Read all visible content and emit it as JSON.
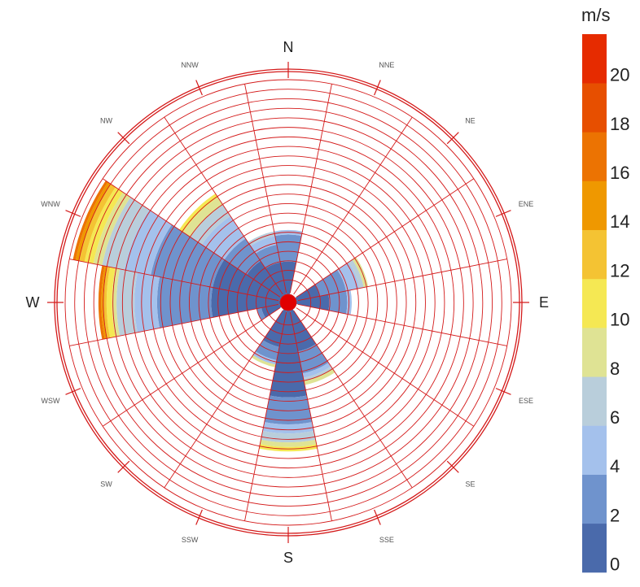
{
  "chart_data": {
    "type": "wind_rose",
    "directions": [
      "N",
      "NNE",
      "NE",
      "ENE",
      "E",
      "ESE",
      "SE",
      "SSE",
      "S",
      "SSW",
      "SW",
      "WSW",
      "W",
      "WNW",
      "NW",
      "NNW"
    ],
    "cardinal_labels": [
      "N",
      "E",
      "S",
      "W"
    ],
    "legend": {
      "unit": "m/s",
      "ticks": [
        "0",
        "2",
        "4",
        "6",
        "8",
        "10",
        "12",
        "14",
        "16",
        "18",
        "20"
      ],
      "bins": [
        {
          "range": "0-2",
          "color": "#4a6aab"
        },
        {
          "range": "2-4",
          "color": "#6f93cd"
        },
        {
          "range": "4-6",
          "color": "#a4c1ec"
        },
        {
          "range": "6-8",
          "color": "#b9cedb"
        },
        {
          "range": "8-10",
          "color": "#dfe394"
        },
        {
          "range": "10-12",
          "color": "#f5e853"
        },
        {
          "range": "12-14",
          "color": "#f4c333"
        },
        {
          "range": "14-16",
          "color": "#ef9800"
        },
        {
          "range": "16-18",
          "color": "#ec7302"
        },
        {
          "range": "18-20",
          "color": "#e74f00"
        },
        {
          "range": "20-22",
          "color": "#e62b00"
        }
      ]
    },
    "radial_max": 26,
    "stacks": [
      {
        "direction": "N",
        "values": [
          4,
          3,
          0.5,
          0,
          0,
          0,
          0,
          0,
          0,
          0,
          0
        ]
      },
      {
        "direction": "NNE",
        "values": [
          0,
          0,
          0,
          0,
          0,
          0,
          0,
          0,
          0,
          0,
          0
        ]
      },
      {
        "direction": "NE",
        "values": [
          0,
          0,
          0,
          0,
          0,
          0,
          0,
          0,
          0,
          0,
          0
        ]
      },
      {
        "direction": "ENE",
        "values": [
          3,
          3,
          1.5,
          0.5,
          0.5,
          0,
          0,
          0,
          0,
          0,
          0
        ]
      },
      {
        "direction": "E",
        "values": [
          4,
          2,
          0.5,
          0,
          0,
          0,
          0,
          0,
          0,
          0,
          0
        ]
      },
      {
        "direction": "ESE",
        "values": [
          0,
          0,
          0,
          0,
          0,
          0,
          0,
          0,
          0,
          0,
          0
        ]
      },
      {
        "direction": "SE",
        "values": [
          0,
          0,
          0,
          0,
          0,
          0,
          0,
          0,
          0,
          0,
          0
        ]
      },
      {
        "direction": "SSE",
        "values": [
          5,
          2.5,
          0.5,
          0.3,
          0.5,
          0,
          0,
          0,
          0,
          0,
          0
        ]
      },
      {
        "direction": "S",
        "values": [
          10,
          3,
          1,
          1,
          0.5,
          0.5,
          0,
          0,
          0,
          0,
          0
        ]
      },
      {
        "direction": "SSW",
        "values": [
          4.5,
          1.5,
          0.5,
          0,
          0.3,
          0,
          0,
          0,
          0,
          0,
          0
        ]
      },
      {
        "direction": "SW",
        "values": [
          0,
          0,
          0,
          0,
          0,
          0,
          0,
          0,
          0,
          0,
          0
        ]
      },
      {
        "direction": "WSW",
        "values": [
          2.5,
          0.5,
          0,
          0,
          0,
          0,
          0,
          0,
          0,
          0,
          0
        ]
      },
      {
        "direction": "W",
        "values": [
          8,
          6,
          2.5,
          2,
          0.5,
          0.6,
          0.4,
          0.2,
          0.3,
          0,
          0
        ]
      },
      {
        "direction": "WNW",
        "values": [
          8,
          7,
          3,
          2.5,
          1,
          1,
          0.6,
          0.4,
          0.3,
          0,
          0
        ]
      },
      {
        "direction": "NW",
        "values": [
          5,
          3,
          3,
          1.5,
          1,
          0.5,
          0,
          0,
          0,
          0,
          0
        ]
      },
      {
        "direction": "NNW",
        "values": [
          4,
          2,
          1,
          0.5,
          0,
          0,
          0,
          0,
          0,
          0,
          0
        ]
      }
    ]
  }
}
